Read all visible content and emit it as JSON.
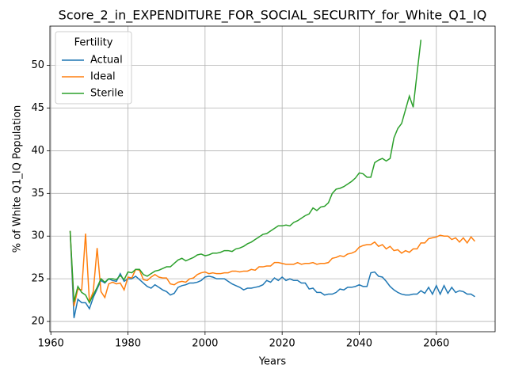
{
  "chart_data": {
    "type": "line",
    "title": "Score_2_in_EXPENDITURE_FOR_SOCIAL_SECURITY_for_White_Q1_IQ",
    "xlabel": "Years",
    "ylabel": "% of White Q1_IQ Population",
    "legend_title": "Fertility",
    "legend_loc": "upper left",
    "grid": true,
    "xlim": [
      1959.75,
      2075.25
    ],
    "ylim": [
      18.8,
      54.6
    ],
    "xticks": [
      1960,
      1980,
      2000,
      2020,
      2040,
      2060
    ],
    "yticks": [
      20,
      25,
      30,
      35,
      40,
      45,
      50
    ],
    "x": [
      1965,
      1966,
      1967,
      1968,
      1969,
      1970,
      1971,
      1972,
      1973,
      1974,
      1975,
      1976,
      1977,
      1978,
      1979,
      1980,
      1981,
      1982,
      1983,
      1984,
      1985,
      1986,
      1987,
      1988,
      1989,
      1990,
      1991,
      1992,
      1993,
      1994,
      1995,
      1996,
      1997,
      1998,
      1999,
      2000,
      2001,
      2002,
      2003,
      2004,
      2005,
      2006,
      2007,
      2008,
      2009,
      2010,
      2011,
      2012,
      2013,
      2014,
      2015,
      2016,
      2017,
      2018,
      2019,
      2020,
      2021,
      2022,
      2023,
      2024,
      2025,
      2026,
      2027,
      2028,
      2029,
      2030,
      2031,
      2032,
      2033,
      2034,
      2035,
      2036,
      2037,
      2038,
      2039,
      2040,
      2041,
      2042,
      2043,
      2044,
      2045,
      2046,
      2047,
      2048,
      2049,
      2050,
      2051,
      2052,
      2053,
      2054,
      2055,
      2056,
      2057,
      2058,
      2059,
      2060,
      2061,
      2062,
      2063,
      2064,
      2065,
      2066,
      2067,
      2068,
      2069,
      2070
    ],
    "series": [
      {
        "name": "Actual",
        "color": "#1f77b4",
        "values": [
          30.6,
          20.4,
          22.6,
          22.2,
          22.2,
          21.5,
          22.8,
          23.8,
          24.8,
          24.5,
          25.0,
          24.8,
          24.7,
          25.6,
          24.7,
          25.0,
          25.0,
          25.3,
          24.9,
          24.5,
          24.1,
          23.9,
          24.3,
          24.0,
          23.7,
          23.5,
          23.1,
          23.3,
          24.0,
          24.2,
          24.3,
          24.5,
          24.5,
          24.6,
          24.8,
          25.2,
          25.3,
          25.2,
          25.0,
          25.0,
          25.0,
          24.7,
          24.4,
          24.2,
          24.0,
          23.7,
          23.9,
          23.9,
          24.0,
          24.1,
          24.3,
          24.8,
          24.6,
          25.1,
          24.8,
          25.2,
          24.8,
          25.0,
          24.8,
          24.8,
          24.5,
          24.5,
          23.8,
          23.9,
          23.4,
          23.4,
          23.1,
          23.2,
          23.2,
          23.4,
          23.8,
          23.7,
          24.0,
          24.0,
          24.1,
          24.3,
          24.1,
          24.1,
          25.7,
          25.8,
          25.3,
          25.2,
          24.7,
          24.1,
          23.7,
          23.4,
          23.2,
          23.1,
          23.1,
          23.2,
          23.2,
          23.6,
          23.3,
          24.0,
          23.2,
          24.2,
          23.2,
          24.2,
          23.3,
          24.0,
          23.4,
          23.6,
          23.5,
          23.2,
          23.2,
          22.9
        ]
      },
      {
        "name": "Ideal",
        "color": "#ff7f0e",
        "values": [
          30.6,
          21.8,
          23.8,
          23.7,
          30.3,
          22.3,
          23.5,
          28.6,
          23.5,
          22.8,
          24.4,
          24.6,
          24.4,
          24.5,
          23.7,
          25.2,
          25.1,
          26.1,
          26.0,
          24.9,
          24.8,
          25.2,
          25.5,
          25.2,
          25.1,
          25.1,
          24.4,
          24.3,
          24.6,
          24.7,
          24.6,
          25.0,
          25.1,
          25.5,
          25.7,
          25.8,
          25.6,
          25.7,
          25.6,
          25.6,
          25.7,
          25.7,
          25.9,
          25.9,
          25.8,
          25.9,
          25.9,
          26.1,
          26.0,
          26.4,
          26.4,
          26.5,
          26.5,
          26.9,
          26.9,
          26.8,
          26.7,
          26.7,
          26.7,
          26.9,
          26.7,
          26.8,
          26.8,
          26.9,
          26.7,
          26.8,
          26.8,
          26.9,
          27.4,
          27.5,
          27.7,
          27.6,
          27.9,
          28.0,
          28.2,
          28.7,
          28.9,
          29.0,
          29.0,
          29.3,
          28.8,
          29.0,
          28.5,
          28.8,
          28.3,
          28.4,
          28.0,
          28.3,
          28.1,
          28.5,
          28.5,
          29.2,
          29.2,
          29.7,
          29.8,
          29.9,
          30.1,
          30.0,
          30.0,
          29.6,
          29.8,
          29.3,
          29.8,
          29.2,
          29.9,
          29.4
        ]
      },
      {
        "name": "Sterile",
        "color": "#2ca02c",
        "values": [
          30.6,
          22.3,
          24.1,
          23.4,
          23.1,
          22.2,
          23.1,
          24.0,
          25.0,
          24.6,
          25.0,
          25.0,
          24.9,
          25.4,
          24.9,
          25.8,
          25.7,
          26.1,
          26.1,
          25.5,
          25.3,
          25.6,
          25.9,
          26.0,
          26.2,
          26.4,
          26.4,
          26.8,
          27.2,
          27.4,
          27.1,
          27.3,
          27.5,
          27.8,
          27.9,
          27.7,
          27.8,
          28.0,
          28.0,
          28.1,
          28.3,
          28.3,
          28.2,
          28.5,
          28.6,
          28.8,
          29.1,
          29.3,
          29.6,
          29.9,
          30.2,
          30.3,
          30.6,
          30.9,
          31.2,
          31.2,
          31.3,
          31.2,
          31.6,
          31.8,
          32.1,
          32.4,
          32.6,
          33.3,
          33.0,
          33.4,
          33.5,
          33.9,
          35.0,
          35.5,
          35.6,
          35.8,
          36.1,
          36.4,
          36.8,
          37.4,
          37.3,
          36.9,
          36.9,
          38.6,
          38.9,
          39.1,
          38.8,
          39.1,
          41.5,
          42.6,
          43.2,
          44.8,
          46.4,
          45.1,
          49.1,
          53.0,
          null,
          null,
          null,
          null,
          null,
          null,
          null,
          null,
          null,
          null,
          null,
          null,
          null,
          null
        ]
      }
    ]
  }
}
